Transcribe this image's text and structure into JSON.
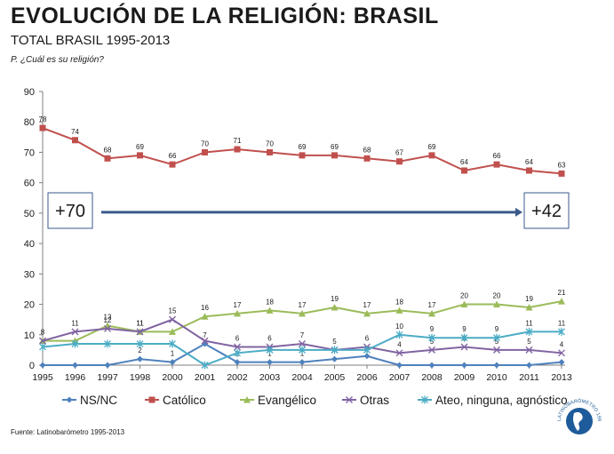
{
  "title": "EVOLUCIÓN DE LA RELIGIÓN: BRASIL",
  "subtitle": "TOTAL BRASIL 1995-2013",
  "question": "P. ¿Cuál  es su religión?",
  "source": "Fuente:  Latinobarómetro   1995-2013",
  "logo_text": "LATINOBARÓMETRO 1995 - 2013",
  "annotation": {
    "start": "+70",
    "end": "+42",
    "arrow_color": "#3a5a8c"
  },
  "chart_data": {
    "type": "line",
    "x": [
      "1995",
      "1996",
      "1997",
      "1998",
      "2000",
      "2001",
      "2002",
      "2003",
      "2004",
      "2005",
      "2006",
      "2007",
      "2008",
      "2009",
      "2010",
      "2011",
      "2013"
    ],
    "ylim": [
      0,
      90
    ],
    "yticks": [
      0,
      10,
      20,
      30,
      40,
      50,
      60,
      70,
      80,
      90
    ],
    "xlabel": "",
    "ylabel": "",
    "grid": false,
    "legend_position": "bottom",
    "series": [
      {
        "name": "NS/NC",
        "color": "#4f81bd",
        "marker": "diamond",
        "values": [
          0,
          0,
          0,
          2,
          1,
          7,
          1,
          1,
          1,
          2,
          3,
          0,
          0,
          0,
          0,
          0,
          1
        ],
        "labels": [
          "",
          "",
          "",
          "2",
          "1",
          "7",
          "1",
          "1",
          "1",
          "",
          "",
          "",
          "",
          "",
          "",
          "",
          ""
        ]
      },
      {
        "name": "Católico",
        "color": "#c0504d",
        "marker": "square",
        "values": [
          78,
          74,
          68,
          69,
          66,
          70,
          71,
          70,
          69,
          69,
          68,
          67,
          69,
          64,
          66,
          64,
          63
        ],
        "labels": [
          "78",
          "74",
          "68",
          "69",
          "66",
          "70",
          "71",
          "70",
          "69",
          "69",
          "68",
          "67",
          "69",
          "64",
          "66",
          "64",
          "63"
        ]
      },
      {
        "name": "Evangélico",
        "color": "#9bbb59",
        "marker": "triangle",
        "values": [
          8,
          8,
          13,
          11,
          11,
          16,
          17,
          18,
          17,
          19,
          17,
          18,
          17,
          20,
          20,
          19,
          21
        ],
        "labels": [
          "",
          "",
          "13",
          "11",
          "",
          "16",
          "17",
          "18",
          "17",
          "19",
          "17",
          "18",
          "17",
          "20",
          "20",
          "19",
          "21"
        ]
      },
      {
        "name": "Otras",
        "color": "#8064a2",
        "marker": "x",
        "values": [
          8,
          11,
          12,
          11,
          15,
          8,
          6,
          6,
          7,
          5,
          6,
          4,
          5,
          6,
          5,
          5,
          4
        ],
        "labels": [
          "8",
          "11",
          "12",
          "11",
          "15",
          "",
          "6",
          "6",
          "7",
          "5",
          "6",
          "4",
          "5",
          "6",
          "5",
          "5",
          "4"
        ]
      },
      {
        "name": "Ateo, ninguna, agnóstico",
        "color": "#4bacc6",
        "marker": "star",
        "values": [
          6,
          7,
          7,
          7,
          7,
          0,
          4,
          5,
          5,
          5,
          5,
          10,
          9,
          9,
          9,
          11,
          11
        ],
        "labels": [
          "",
          "",
          "",
          "",
          "",
          "",
          "",
          "",
          "",
          "",
          "",
          "10",
          "9",
          "9",
          "9",
          "11",
          "11"
        ]
      }
    ]
  }
}
